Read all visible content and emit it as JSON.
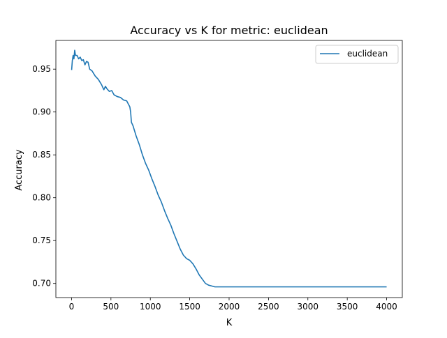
{
  "chart_data": {
    "type": "line",
    "title": "Accuracy vs K for metric: euclidean",
    "xlabel": "K",
    "ylabel": "Accuracy",
    "xlim": [
      -199,
      4199
    ],
    "ylim": [
      0.6835,
      0.9835
    ],
    "x_ticks": [
      0,
      500,
      1000,
      1500,
      2000,
      2500,
      3000,
      3500,
      4000
    ],
    "y_ticks": [
      0.7,
      0.75,
      0.8,
      0.85,
      0.9,
      0.95
    ],
    "x_tick_labels": [
      "0",
      "500",
      "1000",
      "1500",
      "2000",
      "2500",
      "3000",
      "3500",
      "4000"
    ],
    "y_tick_labels": [
      "0.70",
      "0.75",
      "0.80",
      "0.85",
      "0.90",
      "0.95"
    ],
    "grid": false,
    "legend_position": "top-right",
    "series": [
      {
        "name": "euclidean",
        "color": "#1f77b4",
        "points": [
          [
            1,
            0.949
          ],
          [
            10,
            0.96
          ],
          [
            20,
            0.966
          ],
          [
            30,
            0.962
          ],
          [
            40,
            0.972
          ],
          [
            50,
            0.966
          ],
          [
            70,
            0.966
          ],
          [
            90,
            0.962
          ],
          [
            110,
            0.964
          ],
          [
            130,
            0.96
          ],
          [
            150,
            0.961
          ],
          [
            170,
            0.955
          ],
          [
            190,
            0.959
          ],
          [
            210,
            0.958
          ],
          [
            230,
            0.95
          ],
          [
            260,
            0.948
          ],
          [
            300,
            0.942
          ],
          [
            340,
            0.938
          ],
          [
            380,
            0.932
          ],
          [
            410,
            0.926
          ],
          [
            430,
            0.93
          ],
          [
            450,
            0.927
          ],
          [
            480,
            0.924
          ],
          [
            510,
            0.925
          ],
          [
            540,
            0.92
          ],
          [
            580,
            0.918
          ],
          [
            620,
            0.917
          ],
          [
            660,
            0.914
          ],
          [
            700,
            0.913
          ],
          [
            740,
            0.906
          ],
          [
            750,
            0.9
          ],
          [
            760,
            0.888
          ],
          [
            780,
            0.884
          ],
          [
            820,
            0.872
          ],
          [
            860,
            0.862
          ],
          [
            900,
            0.85
          ],
          [
            940,
            0.84
          ],
          [
            980,
            0.832
          ],
          [
            1020,
            0.822
          ],
          [
            1060,
            0.813
          ],
          [
            1100,
            0.803
          ],
          [
            1140,
            0.795
          ],
          [
            1180,
            0.785
          ],
          [
            1220,
            0.776
          ],
          [
            1260,
            0.768
          ],
          [
            1300,
            0.758
          ],
          [
            1340,
            0.749
          ],
          [
            1380,
            0.74
          ],
          [
            1420,
            0.733
          ],
          [
            1460,
            0.729
          ],
          [
            1500,
            0.727
          ],
          [
            1540,
            0.723
          ],
          [
            1580,
            0.717
          ],
          [
            1620,
            0.71
          ],
          [
            1660,
            0.705
          ],
          [
            1700,
            0.7
          ],
          [
            1740,
            0.698
          ],
          [
            1780,
            0.697
          ],
          [
            1820,
            0.696
          ],
          [
            1860,
            0.696
          ],
          [
            1900,
            0.696
          ],
          [
            2000,
            0.696
          ],
          [
            2500,
            0.696
          ],
          [
            3000,
            0.696
          ],
          [
            3500,
            0.696
          ],
          [
            4000,
            0.696
          ]
        ]
      }
    ]
  }
}
